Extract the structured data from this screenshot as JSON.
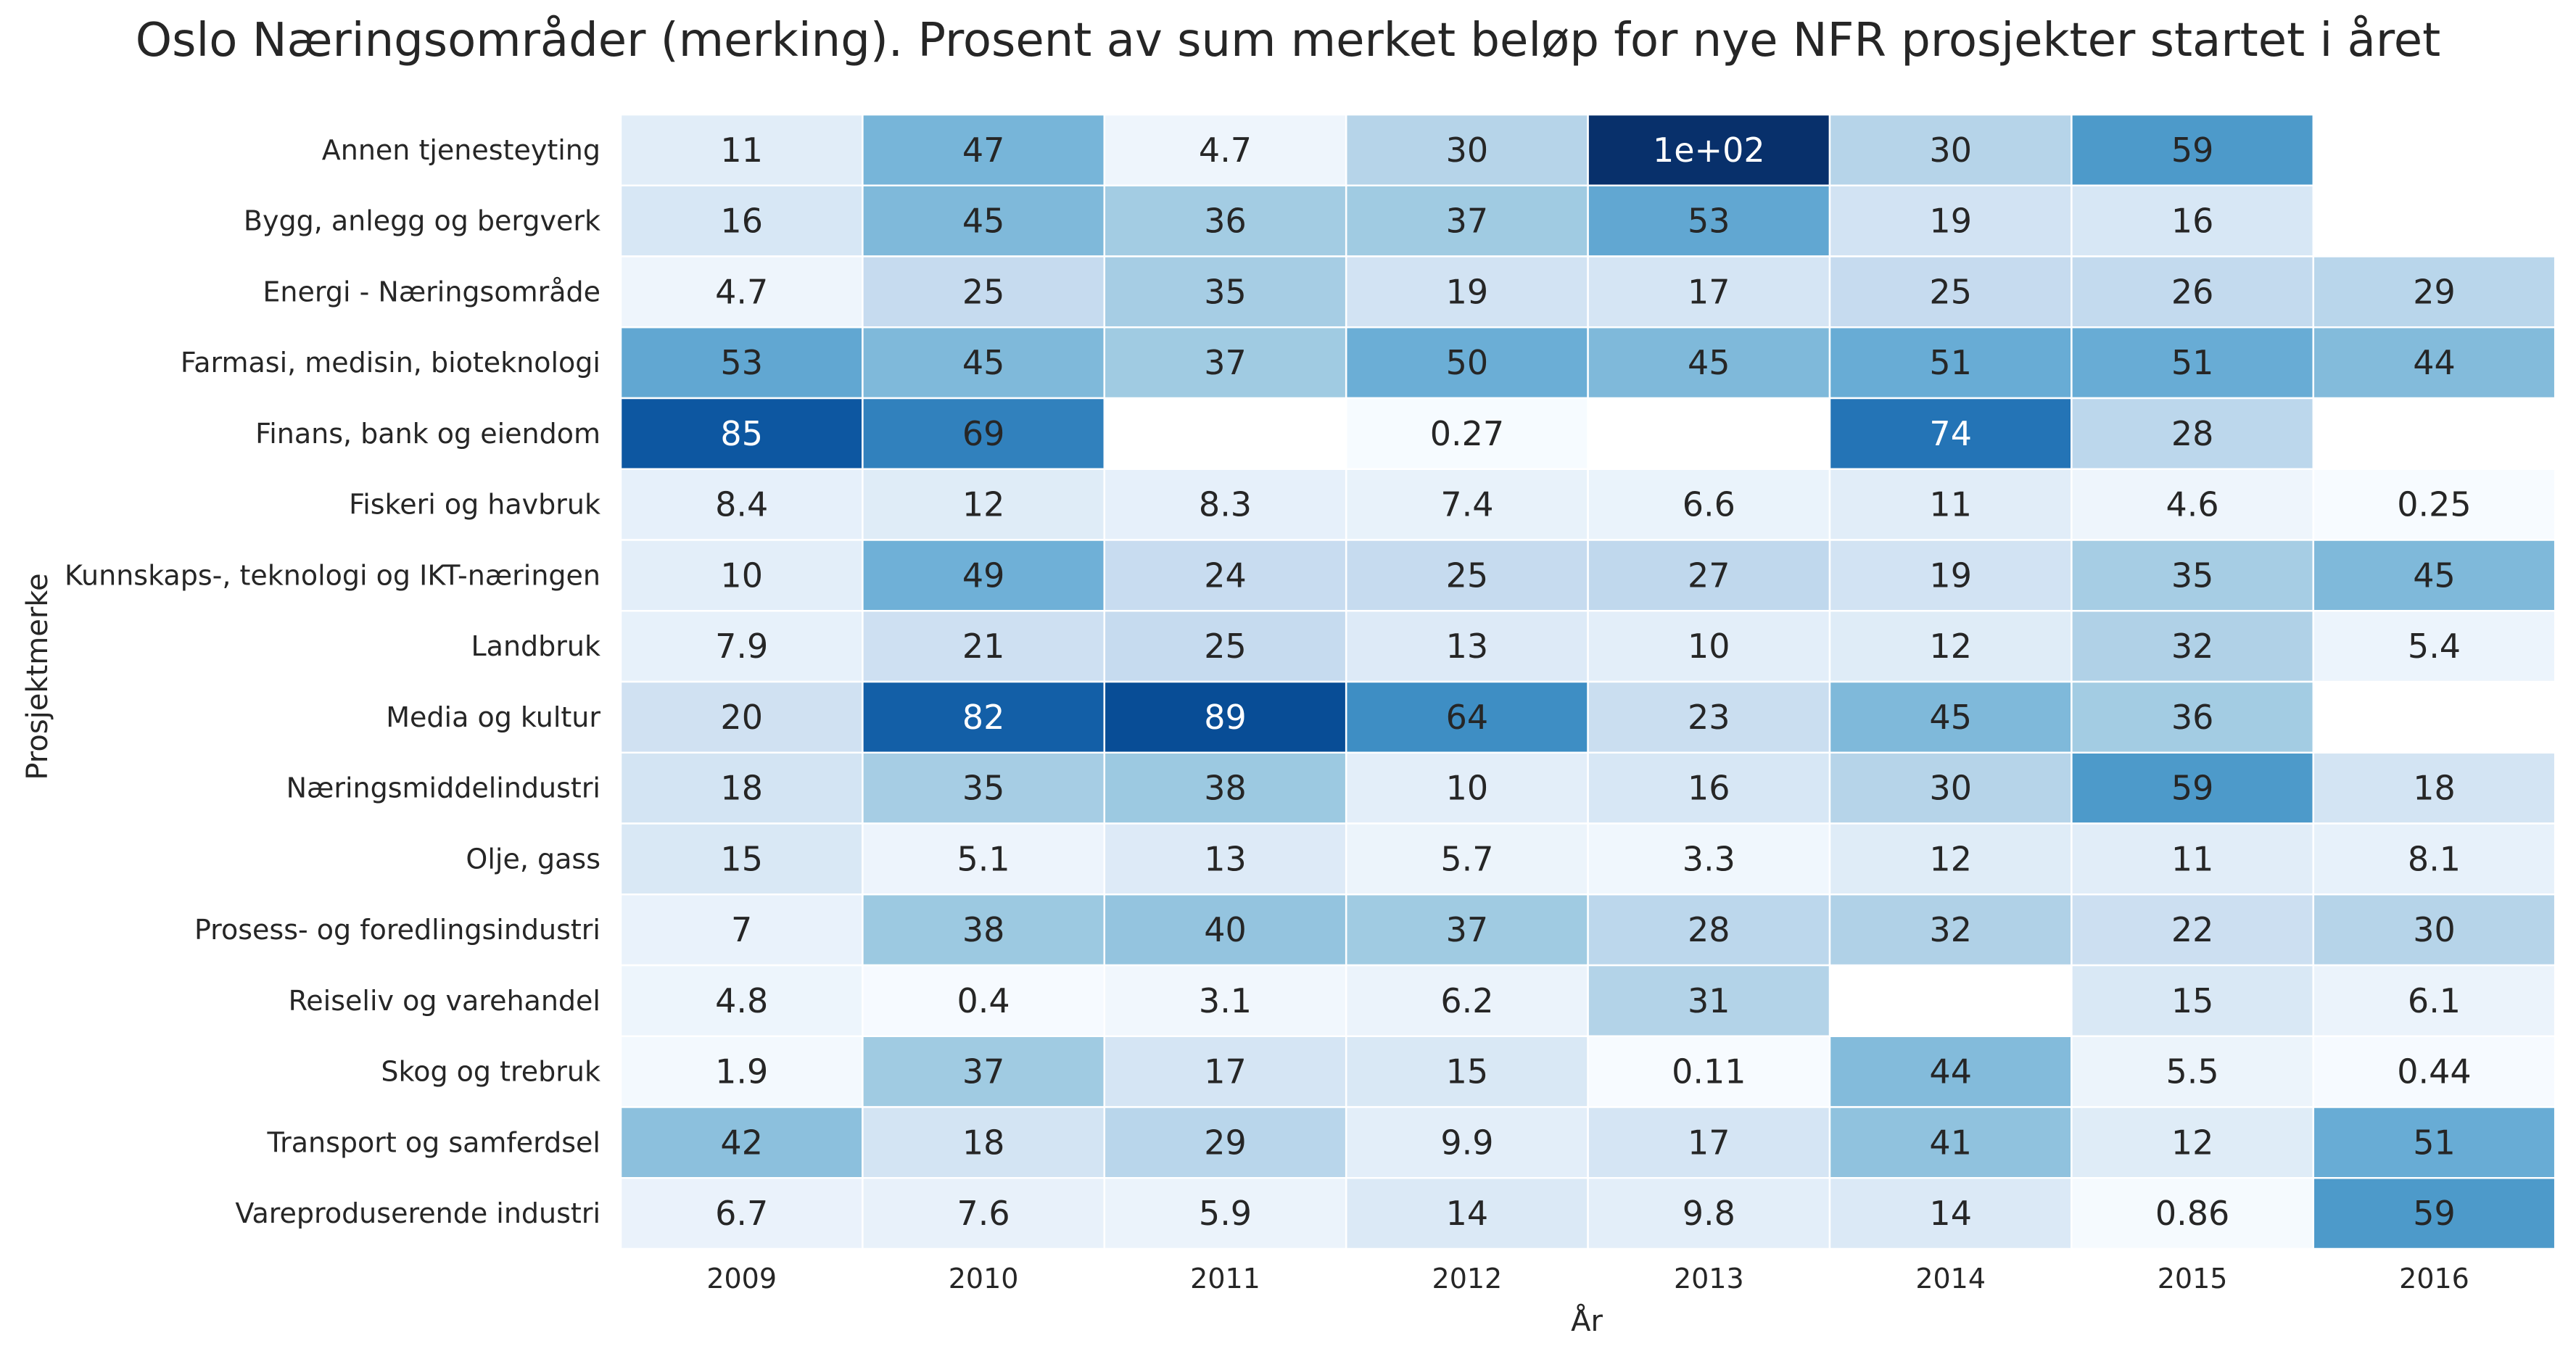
{
  "chart_data": {
    "type": "heatmap",
    "title": "Oslo Næringsområder (merking). Prosent av sum merket beløp for nye NFR prosjekter startet i året",
    "xlabel": "År",
    "ylabel": "Prosjektmerke",
    "colormap": "Blues",
    "color_range": [
      0,
      100
    ],
    "grid_line_color": "#ffffff",
    "colorbar": false,
    "x": [
      "2009",
      "2010",
      "2011",
      "2012",
      "2013",
      "2014",
      "2015",
      "2016"
    ],
    "y": [
      "Annen tjenesteyting",
      "Bygg, anlegg og bergverk",
      "Energi - Næringsområde",
      "Farmasi, medisin, bioteknologi",
      "Finans, bank og eiendom",
      "Fiskeri og havbruk",
      "Kunnskaps-, teknologi og IKT-næringen",
      "Landbruk",
      "Media og kultur",
      "Næringsmiddelindustri",
      "Olje, gass",
      "Prosess- og foredlingsindustri",
      "Reiseliv og varehandel",
      "Skog og trebruk",
      "Transport og samferdsel",
      "Vareproduserende industri"
    ],
    "values": [
      [
        11,
        47,
        4.7,
        30,
        100,
        30,
        59,
        null
      ],
      [
        16,
        45,
        36,
        37,
        53,
        19,
        16,
        null
      ],
      [
        4.7,
        25,
        35,
        19,
        17,
        25,
        26,
        29
      ],
      [
        53,
        45,
        37,
        50,
        45,
        51,
        51,
        44
      ],
      [
        85,
        69,
        null,
        0.27,
        null,
        74,
        28,
        null
      ],
      [
        8.4,
        12,
        8.3,
        7.4,
        6.6,
        11,
        4.6,
        0.25
      ],
      [
        10,
        49,
        24,
        25,
        27,
        19,
        35,
        45
      ],
      [
        7.9,
        21,
        25,
        13,
        10,
        12,
        32,
        5.4
      ],
      [
        20,
        82,
        89,
        64,
        23,
        45,
        36,
        null
      ],
      [
        18,
        35,
        38,
        10,
        16,
        30,
        59,
        18
      ],
      [
        15,
        5.1,
        13,
        5.7,
        3.3,
        12,
        11,
        8.1
      ],
      [
        7,
        38,
        40,
        37,
        28,
        32,
        22,
        30
      ],
      [
        4.8,
        0.4,
        3.1,
        6.2,
        31,
        null,
        15,
        6.1
      ],
      [
        1.9,
        37,
        17,
        15,
        0.11,
        44,
        5.5,
        0.44
      ],
      [
        42,
        18,
        29,
        9.9,
        17,
        41,
        12,
        51
      ],
      [
        6.7,
        7.6,
        5.9,
        14,
        9.8,
        14,
        0.86,
        59
      ]
    ],
    "labels": [
      [
        "11",
        "47",
        "4.7",
        "30",
        "1e+02",
        "30",
        "59",
        ""
      ],
      [
        "16",
        "45",
        "36",
        "37",
        "53",
        "19",
        "16",
        ""
      ],
      [
        "4.7",
        "25",
        "35",
        "19",
        "17",
        "25",
        "26",
        "29"
      ],
      [
        "53",
        "45",
        "37",
        "50",
        "45",
        "51",
        "51",
        "44"
      ],
      [
        "85",
        "69",
        "",
        "0.27",
        "",
        "74",
        "28",
        ""
      ],
      [
        "8.4",
        "12",
        "8.3",
        "7.4",
        "6.6",
        "11",
        "4.6",
        "0.25"
      ],
      [
        "10",
        "49",
        "24",
        "25",
        "27",
        "19",
        "35",
        "45"
      ],
      [
        "7.9",
        "21",
        "25",
        "13",
        "10",
        "12",
        "32",
        "5.4"
      ],
      [
        "20",
        "82",
        "89",
        "64",
        "23",
        "45",
        "36",
        ""
      ],
      [
        "18",
        "35",
        "38",
        "10",
        "16",
        "30",
        "59",
        "18"
      ],
      [
        "15",
        "5.1",
        "13",
        "5.7",
        "3.3",
        "12",
        "11",
        "8.1"
      ],
      [
        "7",
        "38",
        "40",
        "37",
        "28",
        "32",
        "22",
        "30"
      ],
      [
        "4.8",
        "0.4",
        "3.1",
        "6.2",
        "31",
        "",
        "15",
        "6.1"
      ],
      [
        "1.9",
        "37",
        "17",
        "15",
        "0.11",
        "44",
        "5.5",
        "0.44"
      ],
      [
        "42",
        "18",
        "29",
        "9.9",
        "17",
        "41",
        "12",
        "51"
      ],
      [
        "6.7",
        "7.6",
        "5.9",
        "14",
        "9.8",
        "14",
        "0.86",
        "59"
      ]
    ]
  }
}
